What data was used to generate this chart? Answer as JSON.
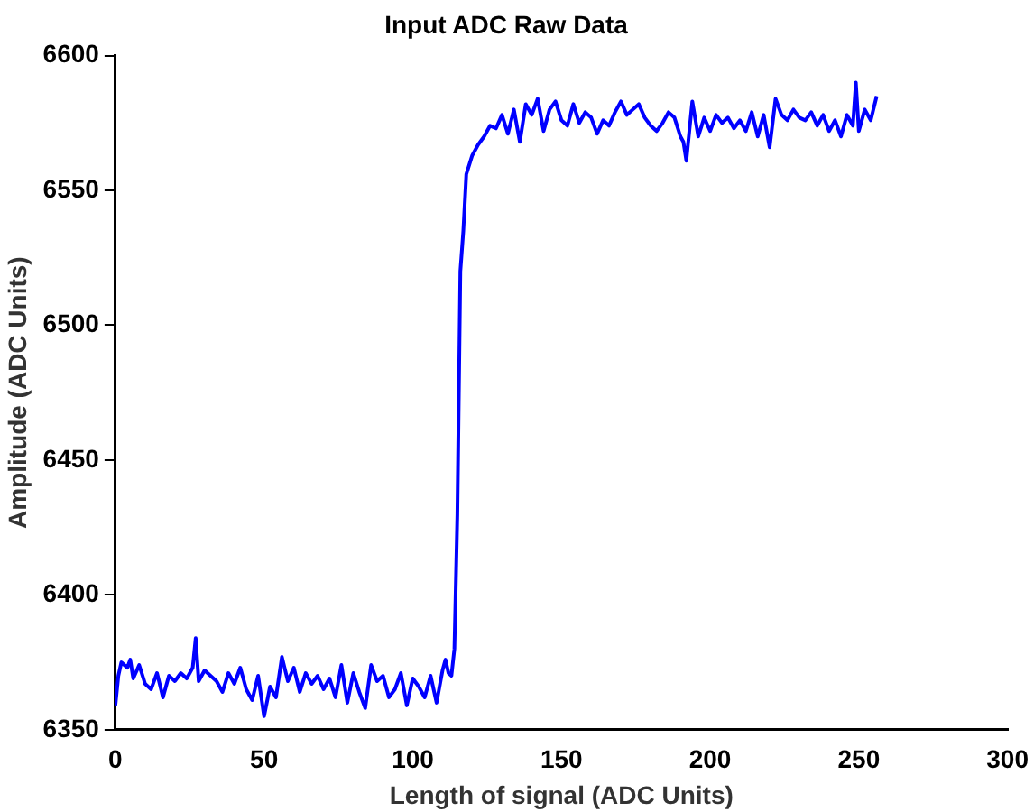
{
  "chart_data": {
    "type": "line",
    "title": "Input ADC Raw Data",
    "xlabel": "Length of signal (ADC Units)",
    "ylabel": "Amplitude (ADC Units)",
    "xlim": [
      0,
      300
    ],
    "xticks": [
      0,
      50,
      100,
      150,
      200,
      250,
      300
    ],
    "ylim": [
      6350,
      6600
    ],
    "yticks": [
      6350,
      6400,
      6450,
      6500,
      6550,
      6600
    ],
    "grid": false,
    "series": [
      {
        "color": "#0000ff",
        "x": [
          0,
          1,
          2,
          4,
          5,
          6,
          8,
          10,
          12,
          14,
          16,
          18,
          20,
          22,
          24,
          26,
          27,
          28,
          30,
          32,
          34,
          36,
          38,
          40,
          42,
          44,
          46,
          48,
          50,
          52,
          54,
          56,
          58,
          60,
          62,
          64,
          66,
          68,
          70,
          72,
          74,
          76,
          78,
          80,
          82,
          84,
          86,
          88,
          90,
          92,
          94,
          96,
          98,
          100,
          102,
          104,
          106,
          108,
          110,
          111,
          112,
          113,
          114,
          115,
          116,
          117,
          118,
          120,
          122,
          124,
          126,
          128,
          130,
          132,
          134,
          136,
          138,
          140,
          142,
          144,
          146,
          148,
          150,
          152,
          154,
          156,
          158,
          160,
          162,
          164,
          166,
          168,
          170,
          172,
          174,
          176,
          178,
          180,
          182,
          184,
          186,
          188,
          190,
          191,
          192,
          194,
          196,
          198,
          200,
          202,
          204,
          206,
          208,
          210,
          212,
          214,
          216,
          218,
          220,
          222,
          224,
          226,
          228,
          230,
          232,
          234,
          236,
          238,
          240,
          242,
          244,
          246,
          248,
          249,
          250,
          252,
          254,
          256
        ],
        "values": [
          6359,
          6370,
          6375,
          6373,
          6376,
          6369,
          6374,
          6367,
          6365,
          6371,
          6362,
          6370,
          6368,
          6371,
          6369,
          6373,
          6384,
          6368,
          6372,
          6370,
          6368,
          6364,
          6371,
          6367,
          6373,
          6365,
          6361,
          6370,
          6355,
          6366,
          6362,
          6377,
          6368,
          6373,
          6364,
          6371,
          6367,
          6370,
          6365,
          6369,
          6362,
          6374,
          6360,
          6371,
          6364,
          6358,
          6374,
          6368,
          6370,
          6362,
          6365,
          6371,
          6359,
          6369,
          6366,
          6362,
          6370,
          6360,
          6372,
          6376,
          6371,
          6370,
          6380,
          6430,
          6520,
          6535,
          6556,
          6563,
          6567,
          6570,
          6574,
          6573,
          6578,
          6571,
          6580,
          6568,
          6582,
          6578,
          6584,
          6572,
          6580,
          6583,
          6576,
          6574,
          6582,
          6575,
          6579,
          6577,
          6571,
          6576,
          6574,
          6579,
          6583,
          6578,
          6580,
          6582,
          6577,
          6574,
          6572,
          6575,
          6579,
          6577,
          6570,
          6568,
          6561,
          6583,
          6570,
          6577,
          6572,
          6578,
          6575,
          6577,
          6573,
          6576,
          6572,
          6579,
          6570,
          6578,
          6566,
          6584,
          6578,
          6576,
          6580,
          6577,
          6576,
          6579,
          6574,
          6578,
          6572,
          6576,
          6570,
          6578,
          6574,
          6590,
          6572,
          6580,
          6576,
          6585
        ]
      }
    ]
  }
}
